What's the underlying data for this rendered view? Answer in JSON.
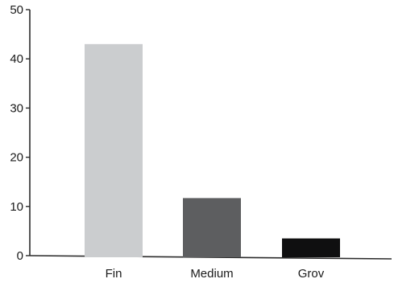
{
  "chart_data": {
    "type": "bar",
    "categories": [
      "Fin",
      "Medium",
      "Grov"
    ],
    "values": [
      43,
      11.7,
      3.5
    ],
    "ylim": [
      0,
      50
    ],
    "yticks": [
      "0",
      "10",
      "20",
      "30",
      "40",
      "50"
    ],
    "ytick_values": [
      0,
      10,
      20,
      30,
      40,
      50
    ],
    "grid": false,
    "bar_colors": [
      "#cbcdcf",
      "#5d5e60",
      "#0f0f10"
    ],
    "axis_color": "#2b2b2b"
  }
}
